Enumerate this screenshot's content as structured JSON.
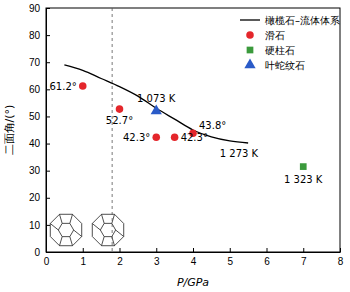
{
  "chart_data": {
    "type": "scatter",
    "xlabel": "P/GPa",
    "ylabel": "二面角/(°)",
    "xlim": [
      0,
      8
    ],
    "ylim": [
      0,
      90
    ],
    "xticks": [
      0,
      1,
      2,
      3,
      4,
      5,
      6,
      7,
      8
    ],
    "yticks": [
      0,
      10,
      20,
      30,
      40,
      50,
      60,
      70,
      80,
      90
    ],
    "grid": false,
    "legend": "upper right",
    "vertical_line": {
      "x": 1.8,
      "line_style": "dashed"
    },
    "series": [
      {
        "name": "橄榄石–流体体系",
        "type": "line",
        "color": "#000000",
        "line_style": "solid",
        "x": [
          0.5,
          1,
          1.5,
          2,
          2.5,
          3,
          3.5,
          4,
          4.5,
          5,
          5.5
        ],
        "values": [
          69,
          67,
          64,
          61,
          57.5,
          53,
          49,
          45,
          42.5,
          41,
          40.2
        ],
        "annotation": "1 273 K"
      },
      {
        "name": "滑石",
        "type": "scatter",
        "marker": "circle",
        "color": "#e4262b",
        "x": [
          1,
          2,
          3,
          3.5,
          4
        ],
        "values": [
          61.2,
          52.7,
          42.3,
          42.3,
          43.8
        ],
        "data_labels": true,
        "value_labels": [
          "61.2°",
          "52.7°",
          "42.3°",
          "42.3°",
          "43.8°"
        ]
      },
      {
        "name": "硬柱石",
        "type": "scatter",
        "marker": "square",
        "color": "#3b9a3c",
        "x": [
          7
        ],
        "values": [
          31.5
        ],
        "point_labels": [
          "1 323 K"
        ]
      },
      {
        "name": "叶蛇纹石",
        "type": "scatter",
        "marker": "triangle",
        "color": "#2a5bc8",
        "x": [
          3
        ],
        "values": [
          52
        ],
        "point_labels": [
          "1 073 K"
        ]
      }
    ]
  }
}
